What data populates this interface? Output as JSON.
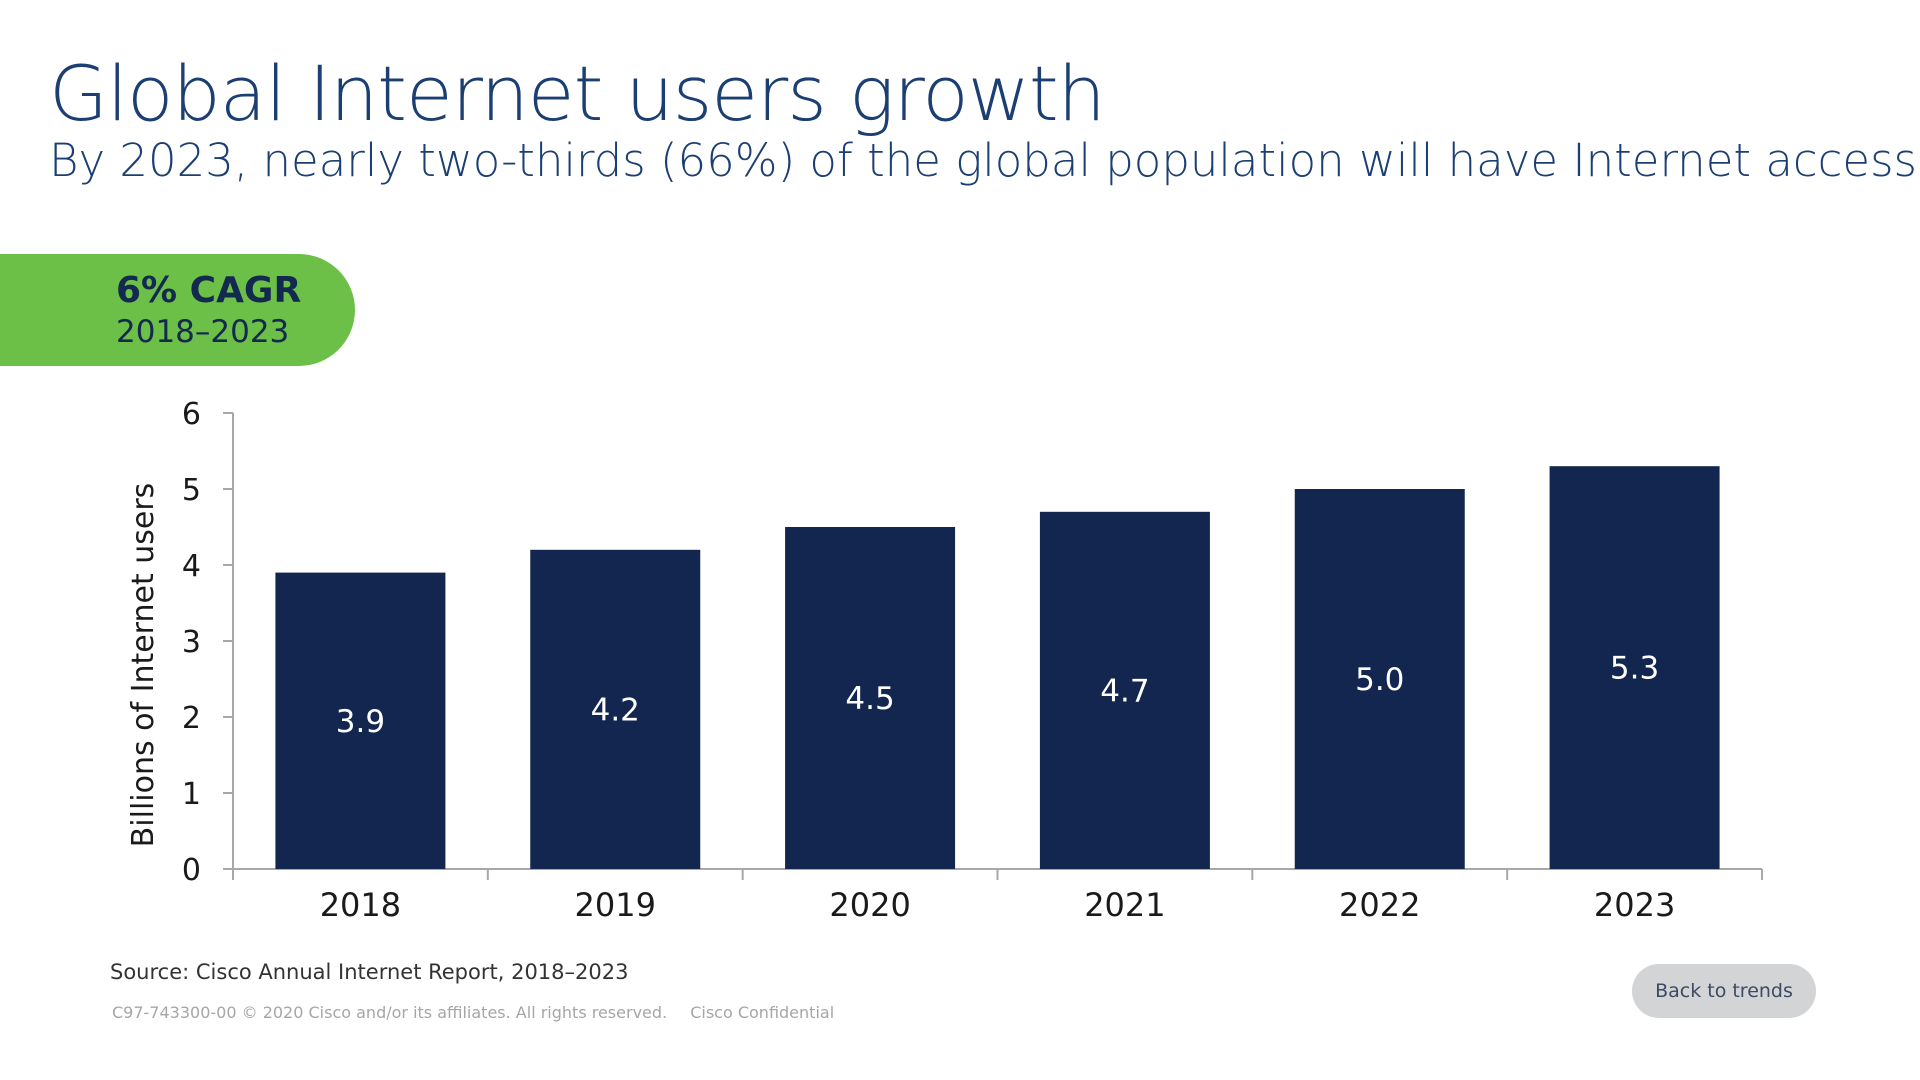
{
  "slide": {
    "title": "Global Internet users growth",
    "subtitle": "By 2023, nearly two-thirds (66%) of the global population will have Internet access"
  },
  "badge": {
    "value": "6% CAGR",
    "period": "2018–2023",
    "color": "#6cbf47"
  },
  "chart_data": {
    "type": "bar",
    "categories": [
      "2018",
      "2019",
      "2020",
      "2021",
      "2022",
      "2023"
    ],
    "values": [
      3.9,
      4.2,
      4.5,
      4.7,
      5.0,
      5.3
    ],
    "value_labels": [
      "3.9",
      "4.2",
      "4.5",
      "4.7",
      "5.0",
      "5.3"
    ],
    "ylabel": "Billions of Internet users",
    "ylim": [
      0,
      6
    ],
    "yticks": [
      0,
      1,
      2,
      3,
      4,
      5,
      6
    ],
    "bar_color": "#12264f",
    "grid": false
  },
  "footer": {
    "source": "Source: Cisco Annual Internet Report, 2018–2023",
    "legal_id": "C97-743300-00 © 2020 Cisco and/or its affiliates. All rights reserved.",
    "confidential": "Cisco Confidential",
    "back_button": "Back to trends"
  }
}
